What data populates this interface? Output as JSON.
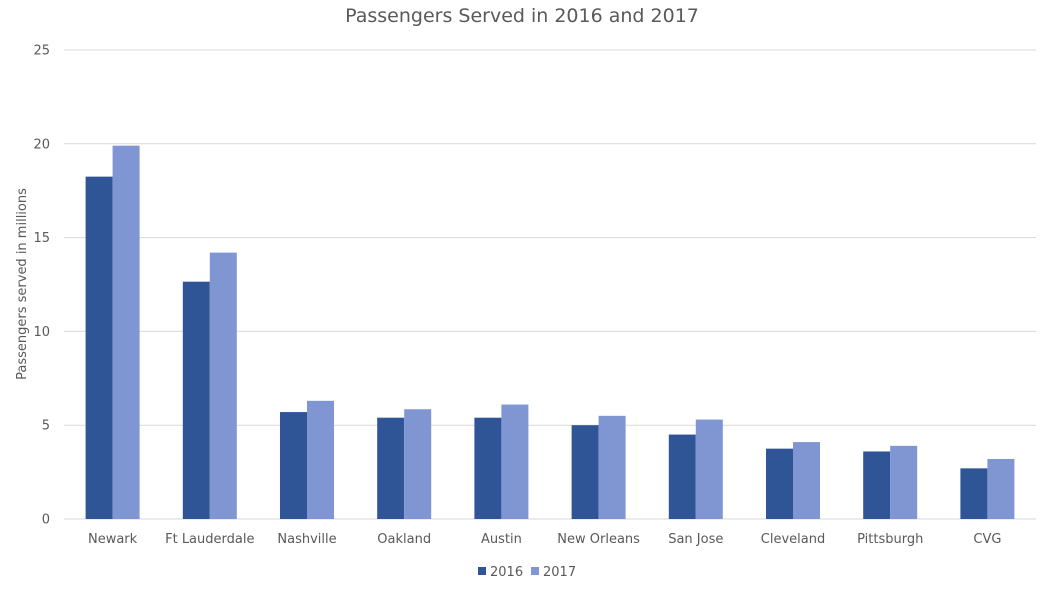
{
  "colors": {
    "series_2016": "#2f5597",
    "series_2017": "#7f96d2",
    "grid": "#d9d9d9",
    "text": "#595959"
  },
  "chart_data": {
    "type": "bar",
    "title": "Passengers Served in 2016 and 2017",
    "xlabel": "",
    "ylabel": "Passengers served in millions",
    "ylim": [
      0,
      25
    ],
    "yticks": [
      0,
      5,
      10,
      15,
      20,
      25
    ],
    "grid": true,
    "legend_position": "bottom",
    "categories": [
      "Newark",
      "Ft Lauderdale",
      "Nashville",
      "Oakland",
      "Austin",
      "New Orleans",
      "San Jose",
      "Cleveland",
      "Pittsburgh",
      "CVG"
    ],
    "series": [
      {
        "name": "2016",
        "values": [
          18.25,
          12.65,
          5.7,
          5.4,
          5.4,
          5.0,
          4.5,
          3.75,
          3.6,
          2.7
        ]
      },
      {
        "name": "2017",
        "values": [
          19.9,
          14.2,
          6.3,
          5.85,
          6.1,
          5.5,
          5.3,
          4.1,
          3.9,
          3.2
        ]
      }
    ]
  }
}
